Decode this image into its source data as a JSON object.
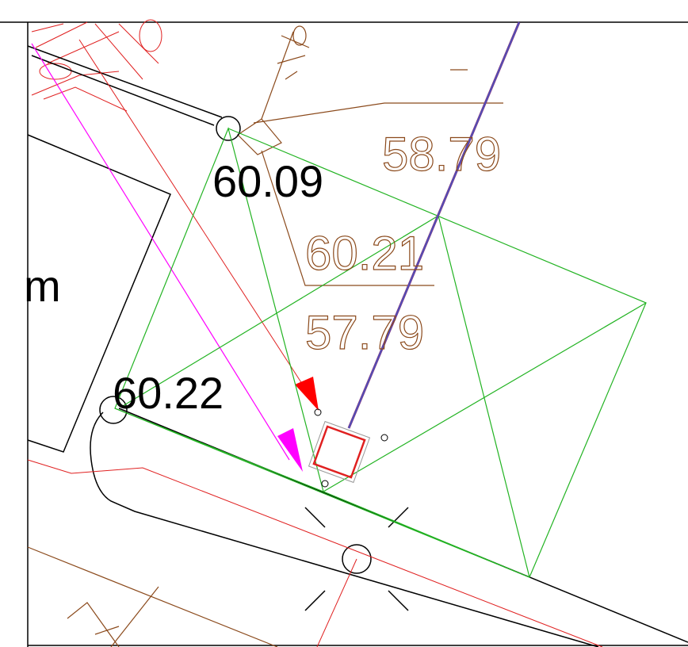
{
  "labels": {
    "level_1": "60.09",
    "level_2": "60.22",
    "unit": "m",
    "elev_1": "58.79",
    "elev_2": "60.21",
    "elev_3": "57.79"
  }
}
